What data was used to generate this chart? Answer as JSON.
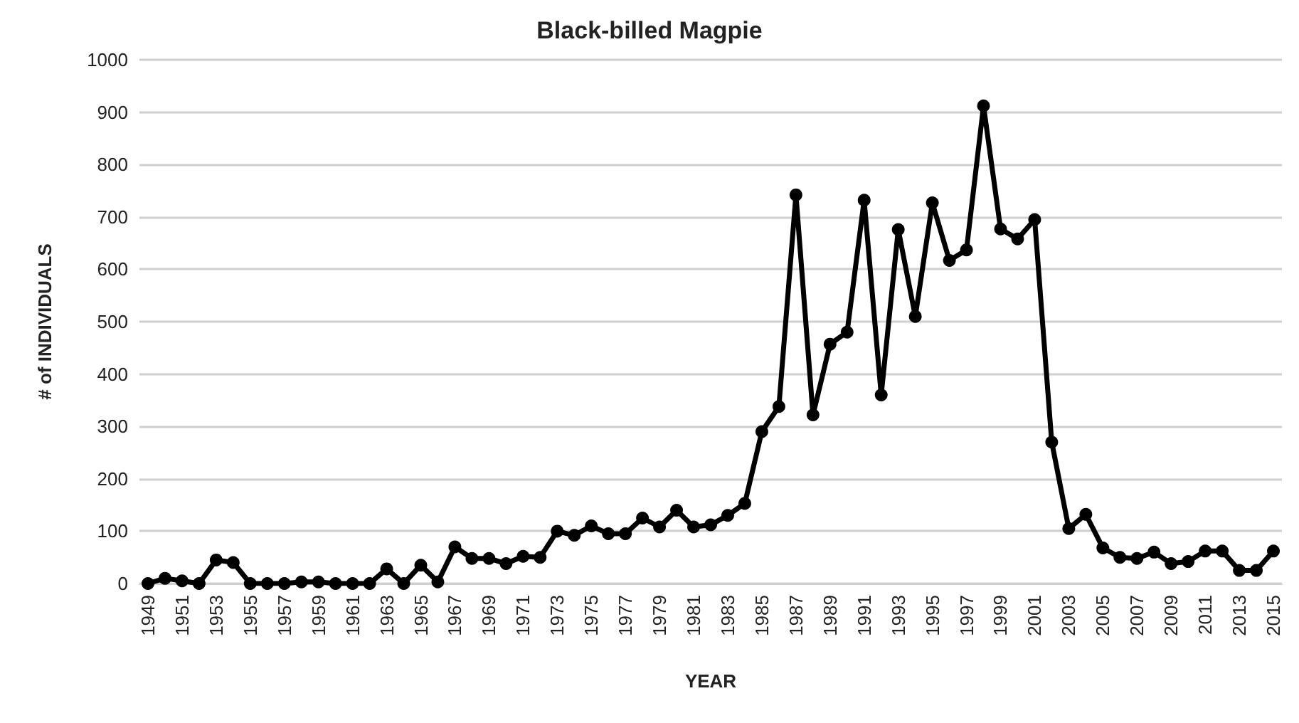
{
  "chart_data": {
    "type": "line",
    "title": "Black-billed Magpie",
    "xlabel": "YEAR",
    "ylabel": "# of INDIVIDUALS",
    "categories": [
      "1949",
      null,
      "1951",
      null,
      "1953",
      null,
      "1955",
      null,
      "1957",
      null,
      "1959",
      null,
      "1961",
      null,
      "1963",
      null,
      "1965",
      null,
      "1967",
      null,
      "1969",
      null,
      "1971",
      null,
      "1973",
      null,
      "1975",
      null,
      "1977",
      null,
      "1979",
      null,
      "1981",
      null,
      "1983",
      null,
      "1985",
      null,
      "1987",
      null,
      "1989",
      null,
      "1991",
      null,
      "1993",
      null,
      "1995",
      null,
      "1997",
      null,
      "1999",
      null,
      "2001",
      null,
      "2003",
      null,
      "2005",
      null,
      "2007",
      null,
      "2009",
      null,
      "2011",
      null,
      "2013",
      null,
      "2015"
    ],
    "series": [
      {
        "color": "#000000",
        "values": [
          0,
          10,
          5,
          0,
          45,
          40,
          0,
          0,
          0,
          3,
          3,
          0,
          0,
          0,
          28,
          0,
          35,
          3,
          70,
          48,
          48,
          38,
          52,
          50,
          100,
          92,
          110,
          95,
          95,
          125,
          108,
          140,
          108,
          112,
          130,
          153,
          290,
          338,
          742,
          322,
          457,
          480,
          732,
          360,
          676,
          510,
          727,
          617,
          637,
          912,
          677,
          658,
          695,
          270,
          105,
          132,
          68,
          50,
          48,
          60,
          38,
          42,
          62,
          62,
          25,
          25,
          62
        ]
      }
    ],
    "ylim": [
      0,
      1000
    ],
    "yticks": [
      0,
      100,
      200,
      300,
      400,
      500,
      600,
      700,
      800,
      900,
      1000
    ],
    "grid": "y",
    "marker": "circle",
    "line_style": "solid"
  }
}
